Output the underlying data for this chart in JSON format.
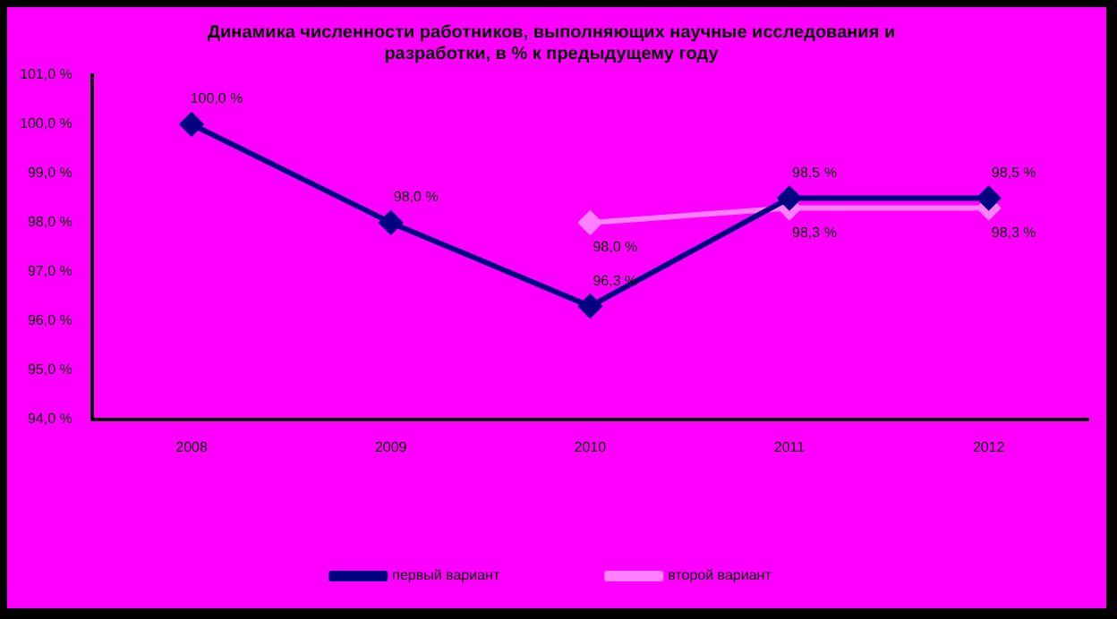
{
  "chart_data": {
    "type": "line",
    "title": "Динамика численности работников, выполняющих научные исследования и разработки, в % к предыдущему году",
    "categories": [
      "2008",
      "2009",
      "2010",
      "2011",
      "2012"
    ],
    "series": [
      {
        "name": "первый вариант",
        "color": "#000080",
        "values": [
          100.0,
          98.0,
          96.3,
          98.5,
          98.5
        ],
        "value_labels": [
          "100,0 %",
          "98,0 %",
          "96,3 %",
          "98,5 %",
          "98,5 %"
        ]
      },
      {
        "name": "второй вариант",
        "color": "#ff80ff",
        "values": [
          null,
          null,
          98.0,
          98.3,
          98.3
        ],
        "value_labels": [
          null,
          null,
          "98,0 %",
          "98,3 %",
          "98,3 %"
        ]
      }
    ],
    "ylim": [
      94,
      101
    ],
    "yticks": [
      {
        "value": 94,
        "label": "94,0 %"
      },
      {
        "value": 95,
        "label": "95,0 %"
      },
      {
        "value": 96,
        "label": "96,0 %"
      },
      {
        "value": 97,
        "label": "97,0 %"
      },
      {
        "value": 98,
        "label": "98,0 %"
      },
      {
        "value": 99,
        "label": "99,0 %"
      },
      {
        "value": 100,
        "label": "100,0 %"
      },
      {
        "value": 101,
        "label": "101,0 %"
      }
    ],
    "grid": false,
    "legend": "bottom",
    "marker": "diamond",
    "line_style": "solid"
  }
}
